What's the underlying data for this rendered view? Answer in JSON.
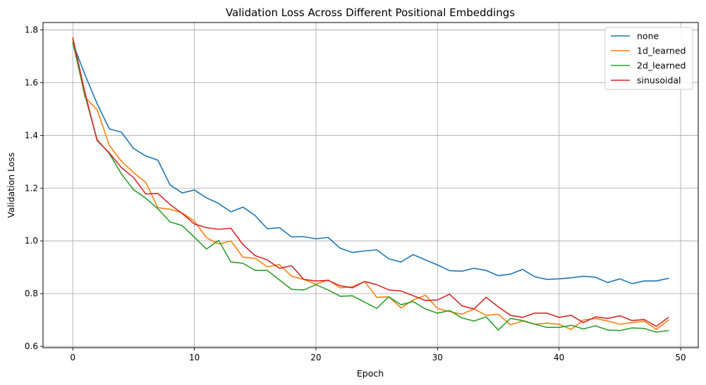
{
  "chart_data": {
    "type": "line",
    "title": "Validation Loss Across Different Positional Embeddings",
    "xlabel": "Epoch",
    "ylabel": "Validation Loss",
    "xlim": [
      -2.45,
      51.45
    ],
    "ylim": [
      0.595,
      1.828
    ],
    "xticks": [
      0,
      10,
      20,
      30,
      40,
      50
    ],
    "yticks": [
      0.6,
      0.8,
      1.0,
      1.2,
      1.4,
      1.6,
      1.8
    ],
    "grid": true,
    "legend_position": "top-right",
    "x": [
      0,
      1,
      2,
      3,
      4,
      5,
      6,
      7,
      8,
      9,
      10,
      11,
      12,
      13,
      14,
      15,
      16,
      17,
      18,
      19,
      20,
      21,
      22,
      23,
      24,
      25,
      26,
      27,
      28,
      29,
      30,
      31,
      32,
      33,
      34,
      35,
      36,
      37,
      38,
      39,
      40,
      41,
      42,
      43,
      44,
      45,
      46,
      47,
      48,
      49
    ],
    "series": [
      {
        "name": "none",
        "color": "#1f77b4",
        "values": [
          1.75,
          1.63,
          1.52,
          1.425,
          1.412,
          1.35,
          1.322,
          1.306,
          1.212,
          1.182,
          1.193,
          1.163,
          1.142,
          1.11,
          1.128,
          1.096,
          1.046,
          1.05,
          1.015,
          1.016,
          1.008,
          1.013,
          0.972,
          0.956,
          0.962,
          0.966,
          0.932,
          0.92,
          0.948,
          0.928,
          0.909,
          0.887,
          0.885,
          0.896,
          0.888,
          0.868,
          0.874,
          0.892,
          0.864,
          0.854,
          0.856,
          0.86,
          0.866,
          0.862,
          0.842,
          0.856,
          0.838,
          0.848,
          0.848,
          0.858
        ]
      },
      {
        "name": "1d_learned",
        "color": "#ff7f0e",
        "values": [
          1.762,
          1.545,
          1.498,
          1.362,
          1.302,
          1.259,
          1.222,
          1.126,
          1.12,
          1.106,
          1.075,
          1.012,
          0.988,
          1.0,
          0.938,
          0.934,
          0.902,
          0.91,
          0.866,
          0.854,
          0.836,
          0.852,
          0.822,
          0.826,
          0.846,
          0.786,
          0.788,
          0.746,
          0.776,
          0.794,
          0.744,
          0.732,
          0.722,
          0.742,
          0.718,
          0.722,
          0.682,
          0.696,
          0.684,
          0.688,
          0.684,
          0.664,
          0.7,
          0.706,
          0.696,
          0.684,
          0.69,
          0.696,
          0.664,
          0.7
        ]
      },
      {
        "name": "2d_learned",
        "color": "#2ca02c",
        "values": [
          1.752,
          1.552,
          1.384,
          1.331,
          1.254,
          1.194,
          1.162,
          1.122,
          1.072,
          1.058,
          1.014,
          0.969,
          1.002,
          0.92,
          0.915,
          0.888,
          0.888,
          0.852,
          0.816,
          0.814,
          0.834,
          0.814,
          0.79,
          0.792,
          0.768,
          0.744,
          0.788,
          0.758,
          0.77,
          0.742,
          0.726,
          0.736,
          0.708,
          0.696,
          0.712,
          0.662,
          0.706,
          0.698,
          0.684,
          0.672,
          0.672,
          0.68,
          0.666,
          0.678,
          0.662,
          0.66,
          0.67,
          0.668,
          0.654,
          0.66
        ]
      },
      {
        "name": "sinusoidal",
        "color": "#d62728",
        "values": [
          1.77,
          1.562,
          1.38,
          1.334,
          1.278,
          1.24,
          1.178,
          1.18,
          1.138,
          1.104,
          1.064,
          1.05,
          1.044,
          1.048,
          0.986,
          0.944,
          0.928,
          0.896,
          0.906,
          0.854,
          0.848,
          0.85,
          0.83,
          0.822,
          0.846,
          0.834,
          0.814,
          0.81,
          0.792,
          0.774,
          0.776,
          0.798,
          0.754,
          0.742,
          0.786,
          0.75,
          0.718,
          0.71,
          0.726,
          0.726,
          0.71,
          0.718,
          0.69,
          0.712,
          0.706,
          0.716,
          0.698,
          0.702,
          0.676,
          0.71
        ]
      }
    ]
  }
}
